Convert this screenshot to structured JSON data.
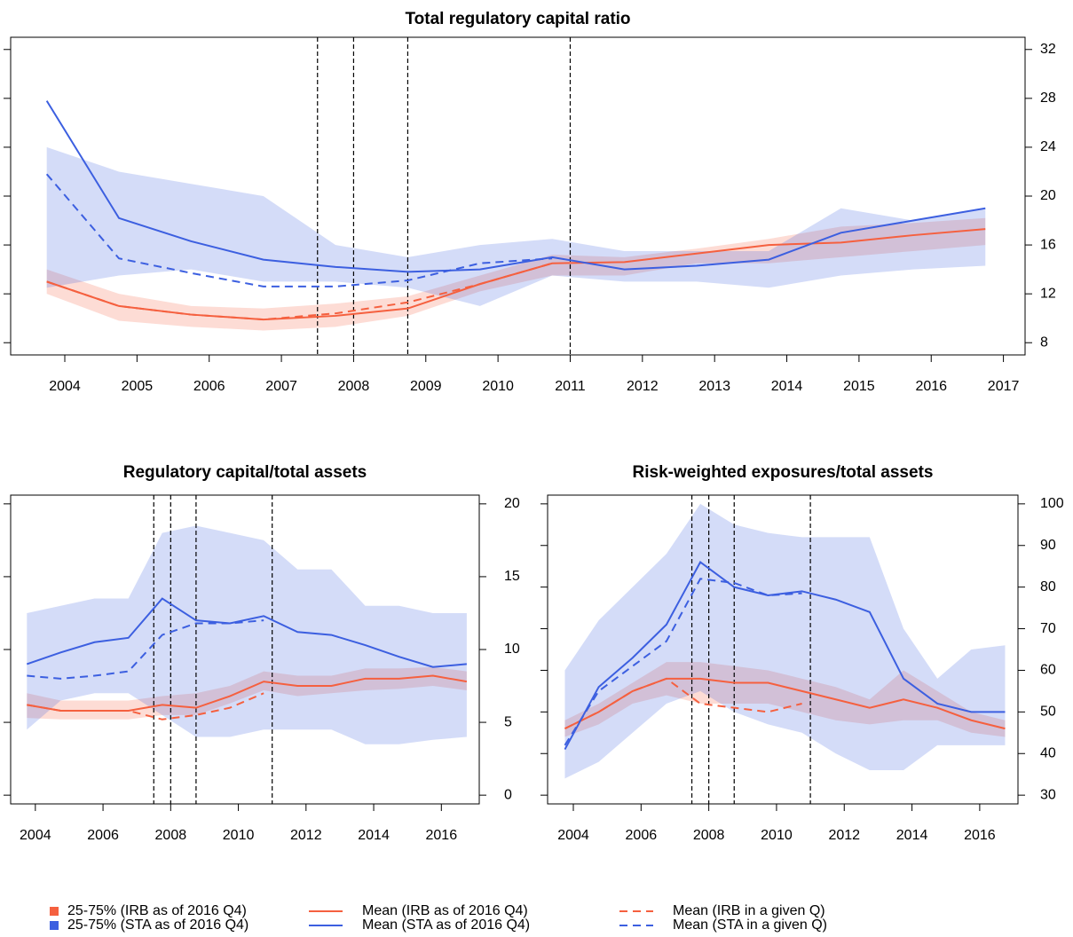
{
  "chart_data": [
    {
      "type": "line",
      "title": "Total regulatory capital ratio",
      "x": [
        2003.75,
        2004.75,
        2005.75,
        2006.75,
        2007.75,
        2008.75,
        2009.75,
        2010.75,
        2011.75,
        2012.75,
        2013.75,
        2014.75,
        2015.75,
        2016.75
      ],
      "xlim": [
        2003.25,
        2017.3
      ],
      "xticks": [
        2004,
        2005,
        2006,
        2007,
        2008,
        2009,
        2010,
        2011,
        2012,
        2013,
        2014,
        2015,
        2016,
        2017
      ],
      "ylim": [
        7,
        33
      ],
      "yticks": [
        8,
        12,
        16,
        20,
        24,
        28,
        32
      ],
      "vlines": [
        2007.5,
        2008,
        2008.75,
        2011
      ],
      "series": [
        {
          "name": "25-75% (IRB as of 2016 Q4)",
          "type": "band",
          "color": "#f5603f",
          "lower": [
            12,
            9.8,
            9.3,
            9.0,
            9.3,
            10.2,
            12.2,
            13.5,
            13.5,
            14.5,
            14.5,
            15,
            15.5,
            16
          ],
          "upper": [
            14,
            12,
            11,
            10.8,
            11.2,
            11.8,
            13.5,
            15.2,
            15,
            15.7,
            16.5,
            17.5,
            17.8,
            18.2
          ]
        },
        {
          "name": "25-75% (STA as of 2016 Q4)",
          "type": "band",
          "color": "#3c5fe0",
          "lower": [
            12.5,
            13.5,
            14.0,
            13.0,
            13.0,
            12.5,
            11.0,
            13.5,
            13.0,
            13.0,
            12.5,
            13.5,
            14.0,
            14.3
          ],
          "upper": [
            24,
            22,
            21,
            20,
            16,
            15,
            16,
            16.5,
            15.5,
            15.5,
            15.5,
            19,
            18,
            19
          ]
        },
        {
          "name": "Mean (IRB as of 2016 Q4)",
          "type": "line",
          "color": "#f5603f",
          "dash": false,
          "values": [
            13.0,
            11.0,
            10.3,
            9.9,
            10.2,
            10.8,
            12.8,
            14.5,
            14.6,
            15.3,
            16.0,
            16.2,
            16.8,
            17.3
          ]
        },
        {
          "name": "Mean (STA as of 2016 Q4)",
          "type": "line",
          "color": "#3c5fe0",
          "dash": false,
          "values": [
            27.8,
            18.2,
            16.3,
            14.8,
            14.2,
            13.8,
            14.0,
            15.0,
            14.0,
            14.3,
            14.8,
            17.0,
            18.0,
            19.0
          ]
        },
        {
          "name": "Mean (IRB in a given Q)",
          "type": "line",
          "color": "#f5603f",
          "dash": true,
          "values": [
            13.0,
            11.0,
            10.3,
            9.9,
            10.4,
            11.3,
            12.8,
            14.5,
            null,
            null,
            null,
            null,
            null,
            null
          ]
        },
        {
          "name": "Mean (STA in a given Q)",
          "type": "line",
          "color": "#3c5fe0",
          "dash": true,
          "values": [
            21.8,
            14.9,
            13.7,
            12.6,
            12.6,
            13.1,
            14.5,
            14.9,
            null,
            null,
            null,
            null,
            null,
            null
          ]
        }
      ]
    },
    {
      "type": "line",
      "title": "Regulatory capital/total assets",
      "x": [
        2003.75,
        2004.75,
        2005.75,
        2006.75,
        2007.75,
        2008.75,
        2009.75,
        2010.75,
        2011.75,
        2012.75,
        2013.75,
        2014.75,
        2015.75,
        2016.75
      ],
      "xlim": [
        2003.27,
        2017.12
      ],
      "xticks": [
        2004,
        2006,
        2008,
        2010,
        2012,
        2014,
        2016
      ],
      "ylim": [
        -0.6,
        20.6
      ],
      "yticks": [
        0,
        5,
        10,
        15,
        20
      ],
      "vlines": [
        2007.5,
        2008,
        2008.75,
        2011
      ],
      "series": [
        {
          "type": "band",
          "color": "#f5603f",
          "lower": [
            5.3,
            5.2,
            5.2,
            5.2,
            5.5,
            5.5,
            6.3,
            7.2,
            6.8,
            7.0,
            7.2,
            7.3,
            7.5,
            7.2
          ],
          "upper": [
            7.0,
            6.5,
            6.5,
            6.5,
            6.8,
            7.0,
            7.5,
            8.5,
            8.2,
            8.2,
            8.7,
            8.7,
            8.8,
            8.5
          ]
        },
        {
          "type": "band",
          "color": "#3c5fe0",
          "lower": [
            4.5,
            6.5,
            7.0,
            7.0,
            5.5,
            4.0,
            4.0,
            4.5,
            4.5,
            4.5,
            3.5,
            3.5,
            3.8,
            4.0
          ],
          "upper": [
            12.5,
            13,
            13.5,
            13.5,
            18,
            18.5,
            18,
            17.5,
            15.5,
            15.5,
            13,
            13,
            12.5,
            12.5
          ]
        },
        {
          "type": "line",
          "color": "#f5603f",
          "dash": false,
          "values": [
            6.2,
            5.8,
            5.8,
            5.8,
            6.2,
            6.0,
            6.8,
            7.8,
            7.5,
            7.5,
            8.0,
            8.0,
            8.2,
            7.8
          ]
        },
        {
          "type": "line",
          "color": "#3c5fe0",
          "dash": false,
          "values": [
            9.0,
            9.8,
            10.5,
            10.8,
            13.5,
            12.0,
            11.8,
            12.3,
            11.2,
            11.0,
            10.3,
            9.5,
            8.8,
            9.0
          ]
        },
        {
          "type": "line",
          "color": "#f5603f",
          "dash": true,
          "values": [
            6.2,
            5.8,
            5.8,
            5.8,
            5.2,
            5.5,
            6.0,
            7.0,
            null,
            null,
            null,
            null,
            null,
            null
          ]
        },
        {
          "type": "line",
          "color": "#3c5fe0",
          "dash": true,
          "values": [
            8.2,
            8.0,
            8.2,
            8.5,
            11.0,
            11.8,
            11.8,
            12.0,
            null,
            null,
            null,
            null,
            null,
            null
          ]
        }
      ]
    },
    {
      "type": "line",
      "title": "Risk-weighted exposures/total assets",
      "x": [
        2003.75,
        2004.75,
        2005.75,
        2006.75,
        2007.75,
        2008.75,
        2009.75,
        2010.75,
        2011.75,
        2012.75,
        2013.75,
        2014.75,
        2015.75,
        2016.75
      ],
      "xlim": [
        2003.24,
        2017.13
      ],
      "xticks": [
        2004,
        2006,
        2008,
        2010,
        2012,
        2014,
        2016
      ],
      "ylim": [
        27.9,
        102.1
      ],
      "yticks": [
        30,
        40,
        50,
        60,
        70,
        80,
        90,
        100
      ],
      "vlines": [
        2007.5,
        2008,
        2008.75,
        2011
      ],
      "series": [
        {
          "type": "band",
          "color": "#f5603f",
          "lower": [
            44,
            47,
            52,
            54,
            52,
            52,
            52,
            50,
            48,
            47,
            48,
            48,
            45,
            44
          ],
          "upper": [
            48,
            52,
            57,
            62,
            62,
            61,
            60,
            58,
            56,
            53,
            60,
            55,
            50,
            48
          ]
        },
        {
          "type": "band",
          "color": "#3c5fe0",
          "lower": [
            34,
            38,
            45,
            52,
            55,
            50,
            47,
            45,
            40,
            36,
            36,
            42,
            42,
            42
          ],
          "upper": [
            60,
            72,
            80,
            88,
            100,
            95,
            93,
            92,
            92,
            92,
            70,
            58,
            65,
            66
          ]
        },
        {
          "type": "line",
          "color": "#f5603f",
          "dash": false,
          "values": [
            46,
            50,
            55,
            58,
            58,
            57,
            57,
            55,
            53,
            51,
            53,
            51,
            48,
            46
          ]
        },
        {
          "type": "line",
          "color": "#3c5fe0",
          "dash": false,
          "values": [
            41,
            56,
            63,
            71,
            86,
            80,
            78,
            79,
            77,
            74,
            58,
            52,
            50,
            50
          ]
        },
        {
          "type": "line",
          "color": "#f5603f",
          "dash": true,
          "values": [
            46,
            50,
            55,
            58,
            52,
            51,
            50,
            52,
            null,
            null,
            null,
            null,
            null,
            null
          ]
        },
        {
          "type": "line",
          "color": "#3c5fe0",
          "dash": true,
          "values": [
            42,
            55,
            61,
            67,
            82,
            81,
            78,
            78.5,
            null,
            null,
            null,
            null,
            null,
            null
          ]
        }
      ]
    }
  ]
}
